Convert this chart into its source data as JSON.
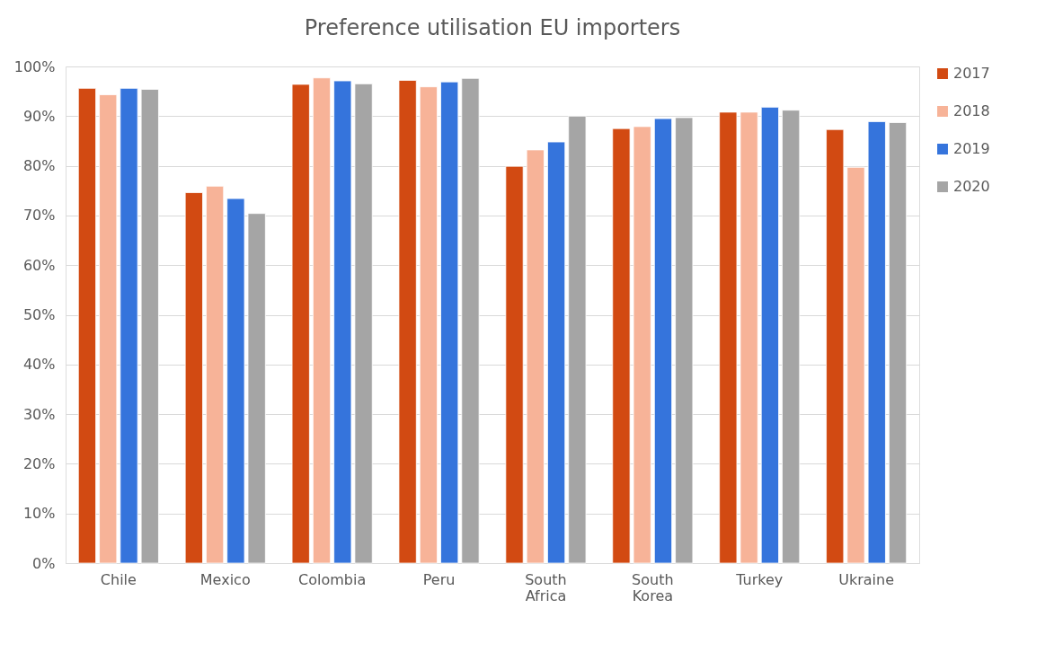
{
  "chart_data": {
    "type": "bar",
    "title": "Preference utilisation EU importers",
    "categories": [
      "Chile",
      "Mexico",
      "Colombia",
      "Peru",
      "South Africa",
      "South Korea",
      "Turkey",
      "Ukraine"
    ],
    "series": [
      {
        "name": "2017",
        "color": "#d24a12",
        "values": [
          95.6,
          74.6,
          96.4,
          97.2,
          79.9,
          87.5,
          90.8,
          87.3
        ]
      },
      {
        "name": "2018",
        "color": "#f7b398",
        "values": [
          94.3,
          75.9,
          97.7,
          95.9,
          83.2,
          87.9,
          90.8,
          79.7
        ]
      },
      {
        "name": "2019",
        "color": "#3574dc",
        "values": [
          95.6,
          73.4,
          97.1,
          96.9,
          84.8,
          89.5,
          91.8,
          88.9
        ]
      },
      {
        "name": "2020",
        "color": "#a5a5a5",
        "values": [
          95.4,
          70.4,
          96.5,
          97.6,
          90.0,
          89.7,
          91.2,
          88.7
        ]
      }
    ],
    "ylim": [
      0,
      100
    ],
    "yticks": [
      {
        "value": 0,
        "label": "0%"
      },
      {
        "value": 10,
        "label": "10%"
      },
      {
        "value": 20,
        "label": "20%"
      },
      {
        "value": 30,
        "label": "30%"
      },
      {
        "value": 40,
        "label": "40%"
      },
      {
        "value": 50,
        "label": "50%"
      },
      {
        "value": 60,
        "label": "60%"
      },
      {
        "value": 70,
        "label": "70%"
      },
      {
        "value": 80,
        "label": "80%"
      },
      {
        "value": 90,
        "label": "90%"
      },
      {
        "value": 100,
        "label": "100%"
      }
    ],
    "grid": "y",
    "legend": "right"
  }
}
